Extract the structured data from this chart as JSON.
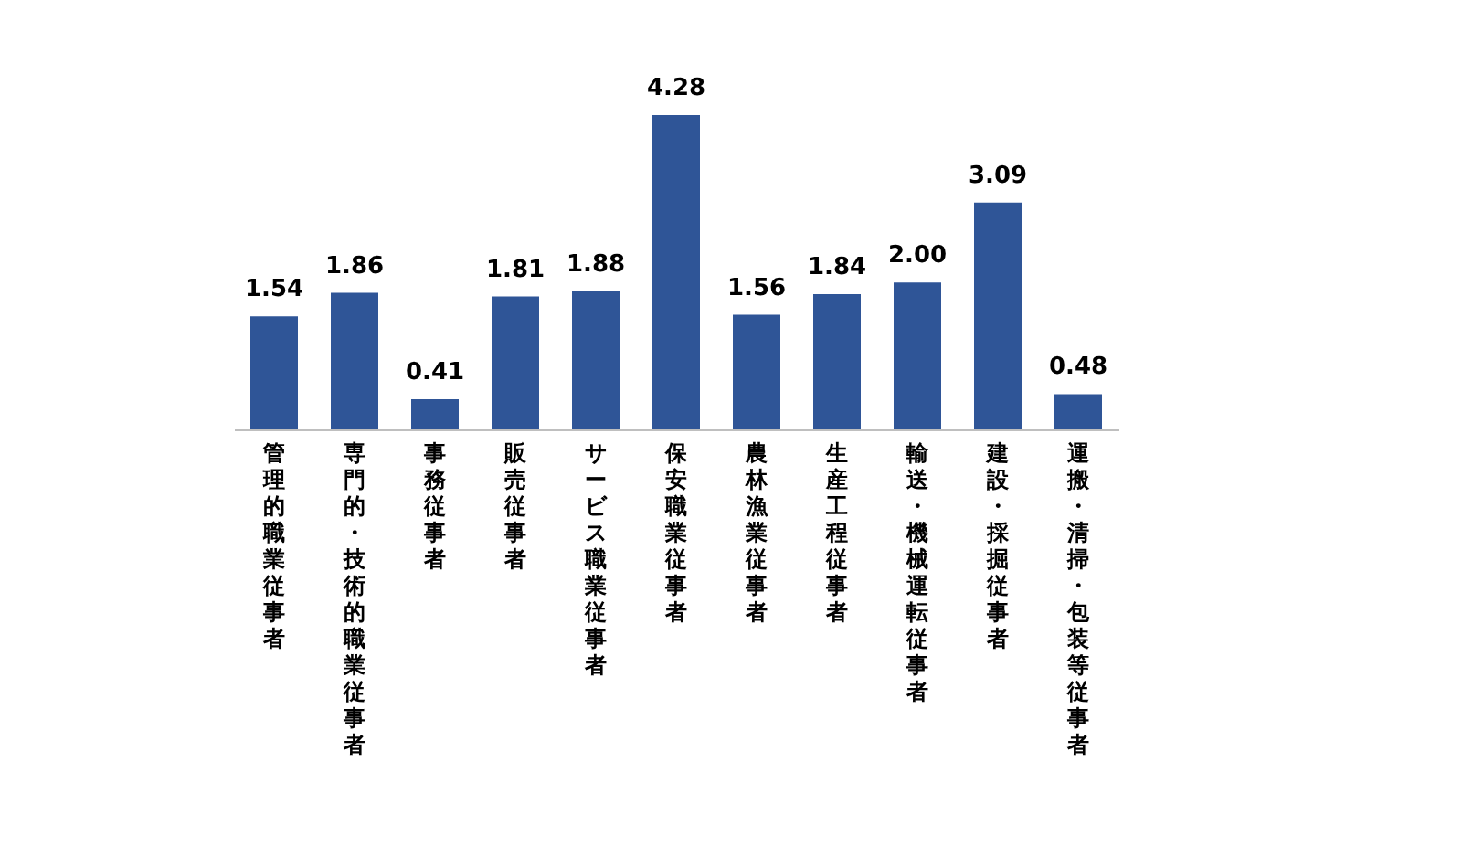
{
  "chart_data": {
    "type": "bar",
    "categories": [
      "管理的職業従事者",
      "専門的・技術的職業従事者",
      "事務従事者",
      "販売従事者",
      "サービス職業従事者",
      "保安職業従事者",
      "農林漁業従事者",
      "生産工程従事者",
      "輸送・機械運転従事者",
      "建設・採掘従事者",
      "運搬・清掃・包装等従事者"
    ],
    "values": [
      1.54,
      1.86,
      0.41,
      1.81,
      1.88,
      4.28,
      1.56,
      1.84,
      2.0,
      3.09,
      0.48
    ],
    "value_labels": [
      "1.54",
      "1.86",
      "0.41",
      "1.81",
      "1.88",
      "4.28",
      "1.56",
      "1.84",
      "2.00",
      "3.09",
      "0.48"
    ],
    "color": "#2f5597",
    "grid": false
  }
}
